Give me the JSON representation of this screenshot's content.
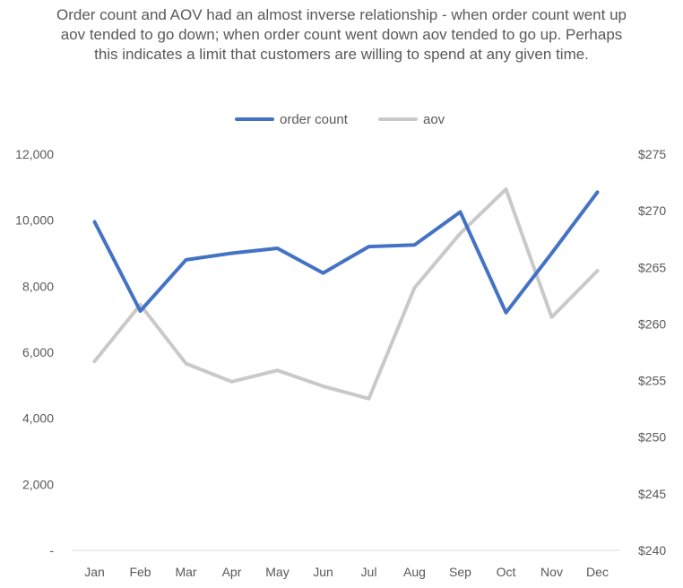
{
  "chart_data": {
    "type": "line",
    "title": "Order count and AOV had an almost inverse relationship - when order count went up aov tended to go down; when order count went down aov tended to go up. Perhaps this indicates a limit that customers are willing to spend at any given time.",
    "categories": [
      "Jan",
      "Feb",
      "Mar",
      "Apr",
      "May",
      "Jun",
      "Jul",
      "Aug",
      "Sep",
      "Oct",
      "Nov",
      "Dec"
    ],
    "series": [
      {
        "name": "order count",
        "axis": "left",
        "color": "#4472C4",
        "values": [
          9950,
          7250,
          8800,
          9000,
          9150,
          8400,
          9200,
          9250,
          10250,
          7200,
          9000,
          10850
        ]
      },
      {
        "name": "aov",
        "axis": "right",
        "color": "#C9C9C9",
        "values": [
          256.7,
          261.7,
          256.5,
          254.9,
          255.9,
          254.5,
          253.4,
          263.2,
          268.0,
          271.9,
          260.6,
          264.7
        ]
      }
    ],
    "y_left": {
      "min": 0,
      "max": 12000,
      "ticks": [
        0,
        2000,
        4000,
        6000,
        8000,
        10000,
        12000
      ],
      "tick_labels": [
        "-",
        "2,000",
        "4,000",
        "6,000",
        "8,000",
        "10,000",
        "12,000"
      ]
    },
    "y_right": {
      "min": 240,
      "max": 275,
      "ticks": [
        240,
        245,
        250,
        255,
        260,
        265,
        270,
        275
      ],
      "tick_labels": [
        "$240",
        "$245",
        "$250",
        "$255",
        "$260",
        "$265",
        "$270",
        "$275"
      ]
    },
    "legend": {
      "position": "top"
    },
    "grid": false
  }
}
